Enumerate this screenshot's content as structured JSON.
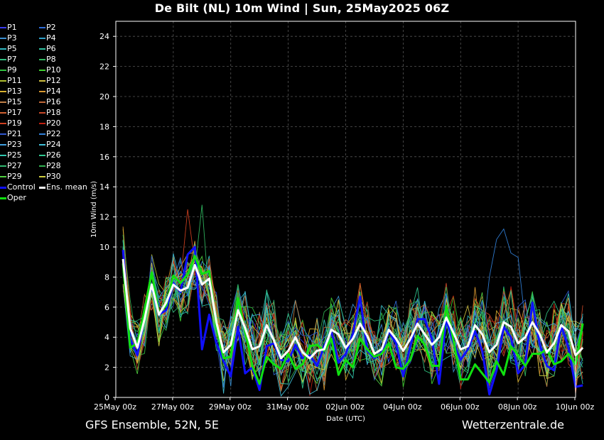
{
  "header": {
    "title": "De Bilt  (NL)  10m Wind | Sun, 25May2025 06Z"
  },
  "footer": {
    "left": "GFS Ensemble, 52N, 5E",
    "right": "Wetterzentrale.de"
  },
  "legend": [
    {
      "label": "P1",
      "color": "#3a3af0"
    },
    {
      "label": "P2",
      "color": "#2f6cd8"
    },
    {
      "label": "P3",
      "color": "#3a8fd0"
    },
    {
      "label": "P4",
      "color": "#2fa0c8"
    },
    {
      "label": "P5",
      "color": "#2fb8c0"
    },
    {
      "label": "P6",
      "color": "#2fc0a0"
    },
    {
      "label": "P7",
      "color": "#2fc080"
    },
    {
      "label": "P8",
      "color": "#2fb860"
    },
    {
      "label": "P9",
      "color": "#30c040"
    },
    {
      "label": "P10",
      "color": "#40d030"
    },
    {
      "label": "P11",
      "color": "#b0c030"
    },
    {
      "label": "P12",
      "color": "#d0c040"
    },
    {
      "label": "P13",
      "color": "#d8b030"
    },
    {
      "label": "P14",
      "color": "#d89830"
    },
    {
      "label": "P15",
      "color": "#c08048"
    },
    {
      "label": "P16",
      "color": "#c06838"
    },
    {
      "label": "P17",
      "color": "#d06030"
    },
    {
      "label": "P18",
      "color": "#c84828"
    },
    {
      "label": "P19",
      "color": "#d04020"
    },
    {
      "label": "P20",
      "color": "#c02010"
    },
    {
      "label": "P21",
      "color": "#3058d0"
    },
    {
      "label": "P22",
      "color": "#3080d8"
    },
    {
      "label": "P23",
      "color": "#40a0e0"
    },
    {
      "label": "P24",
      "color": "#40c0d8"
    },
    {
      "label": "P25",
      "color": "#30c8b0"
    },
    {
      "label": "P26",
      "color": "#30c890"
    },
    {
      "label": "P27",
      "color": "#30b870"
    },
    {
      "label": "P28",
      "color": "#30b050"
    },
    {
      "label": "P29",
      "color": "#50d040"
    },
    {
      "label": "P30",
      "color": "#d0d040"
    },
    {
      "label": "Control",
      "color": "#1010ff"
    },
    {
      "label": "Ens. mean",
      "color": "#ffffff"
    },
    {
      "label": "Oper",
      "color": "#10e010"
    }
  ],
  "chart_data": {
    "type": "line",
    "title": "De Bilt  (NL)  10m Wind | Sun, 25May2025 06Z",
    "xlabel": "Date (UTC)",
    "ylabel": "10m Wind (m/s)",
    "ylim": [
      0,
      25
    ],
    "yticks": [
      "0",
      "2",
      "4",
      "6",
      "8",
      "10",
      "12",
      "14",
      "16",
      "18",
      "20",
      "22",
      "24"
    ],
    "xlim_hours": [
      0,
      384
    ],
    "xtick_labels": [
      "25May 00z",
      "27May 00z",
      "29May 00z",
      "31May 00z",
      "02Jun 00z",
      "04Jun 00z",
      "06Jun 00z",
      "08Jun 00z",
      "10Jun 00z"
    ],
    "grid": true,
    "step_hours": 6,
    "start_hour": 6,
    "series": [
      {
        "name": "Ens. mean",
        "color": "#ffffff",
        "width": 3,
        "values": [
          9.2,
          4.6,
          3.3,
          5.2,
          7.5,
          5.5,
          6.3,
          7.5,
          7.1,
          7.3,
          8.8,
          7.5,
          7.9,
          5.0,
          3.0,
          3.5,
          5.8,
          4.6,
          3.2,
          3.4,
          4.8,
          3.8,
          2.6,
          3.1,
          4.0,
          3.0,
          2.6,
          3.1,
          3.2,
          4.5,
          4.2,
          3.3,
          3.9,
          4.9,
          4.1,
          2.9,
          3.2,
          4.5,
          3.9,
          3.1,
          3.9,
          4.9,
          4.2,
          3.5,
          4.0,
          5.3,
          4.3,
          3.2,
          3.4,
          4.8,
          4.2,
          3.0,
          3.5,
          5.0,
          4.7,
          3.6,
          4.0,
          5.0,
          4.2,
          3.0,
          3.6,
          4.8,
          4.4,
          2.8,
          3.3
        ]
      },
      {
        "name": "Oper",
        "color": "#10e010",
        "width": 3,
        "values": [
          8.9,
          3.3,
          3.6,
          5.8,
          8.3,
          5.6,
          6.1,
          8.1,
          7.6,
          8.2,
          9.4,
          8.2,
          8.4,
          4.6,
          2.6,
          2.7,
          6.6,
          4.4,
          2.1,
          0.9,
          2.7,
          2.2,
          1.9,
          2.9,
          1.9,
          2.2,
          3.4,
          3.5,
          3.1,
          3.9,
          1.5,
          2.5,
          2.0,
          3.9,
          3.2,
          2.7,
          2.9,
          3.6,
          2.0,
          1.9,
          2.5,
          4.1,
          3.5,
          2.1,
          2.1,
          6.1,
          3.8,
          1.2,
          1.2,
          2.2,
          1.6,
          1.0,
          2.4,
          1.5,
          3.4,
          2.8,
          2.1,
          2.9,
          2.9,
          3.2,
          2.2,
          2.4,
          2.9,
          2.2,
          4.9
        ]
      },
      {
        "name": "Control",
        "color": "#1010ff",
        "width": 3,
        "values": [
          9.8,
          3.9,
          2.8,
          5.3,
          7.4,
          5.5,
          5.8,
          7.6,
          7.0,
          9.5,
          10.0,
          3.2,
          5.5,
          3.6,
          2.4,
          1.4,
          4.7,
          1.6,
          2.0,
          0.5,
          3.4,
          3.6,
          2.5,
          2.4,
          3.5,
          2.6,
          2.8,
          2.1,
          3.4,
          4.4,
          2.3,
          2.9,
          4.2,
          6.7,
          3.1,
          2.6,
          3.0,
          4.4,
          3.6,
          1.4,
          3.4,
          5.2,
          5.2,
          3.9,
          0.9,
          5.2,
          3.6,
          2.5,
          3.2,
          4.4,
          3.1,
          0.2,
          1.8,
          4.7,
          4.0,
          1.6,
          2.2,
          6.3,
          3.5,
          2.1,
          1.8,
          4.8,
          3.3,
          0.7,
          0.8
        ]
      }
    ]
  }
}
